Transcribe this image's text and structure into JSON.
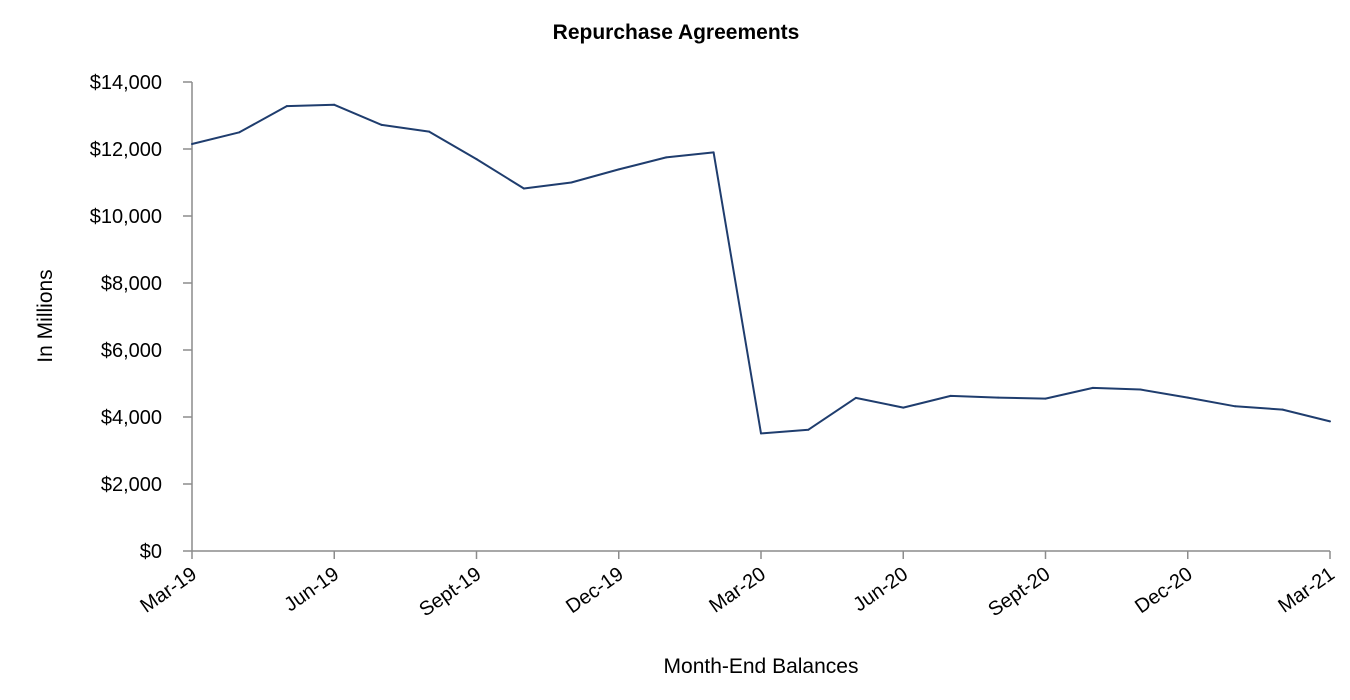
{
  "chart_data": {
    "type": "line",
    "title": "Repurchase Agreements",
    "xlabel": "Month-End Balances",
    "ylabel": "In Millions",
    "ylim": [
      0,
      14000
    ],
    "yticks": [
      0,
      2000,
      4000,
      6000,
      8000,
      10000,
      12000,
      14000
    ],
    "ytick_labels": [
      "$0",
      "$2,000",
      "$4,000",
      "$6,000",
      "$8,000",
      "$10,000",
      "$12,000",
      "$14,000"
    ],
    "x": [
      "Mar-19",
      "Apr-19",
      "May-19",
      "Jun-19",
      "Jul-19",
      "Aug-19",
      "Sept-19",
      "Oct-19",
      "Nov-19",
      "Dec-19",
      "Jan-20",
      "Feb-20",
      "Mar-20",
      "Apr-20",
      "May-20",
      "Jun-20",
      "Jul-20",
      "Aug-20",
      "Sept-20",
      "Oct-20",
      "Nov-20",
      "Dec-20",
      "Jan-21",
      "Feb-21",
      "Mar-21"
    ],
    "xtick_labels": [
      "Mar-19",
      "Jun-19",
      "Sept-19",
      "Dec-19",
      "Mar-20",
      "Jun-20",
      "Sept-20",
      "Dec-20",
      "Mar-21"
    ],
    "series": [
      {
        "values": [
          12150,
          12500,
          13280,
          13320,
          12720,
          12520,
          11700,
          10820,
          11000,
          11390,
          11750,
          11900,
          3510,
          3620,
          4570,
          4280,
          4630,
          4580,
          4550,
          4870,
          4820,
          4580,
          4320,
          4220,
          3870
        ]
      }
    ],
    "colors": {
      "series": "#1f3d6e"
    },
    "grid": false,
    "legend": "none"
  }
}
